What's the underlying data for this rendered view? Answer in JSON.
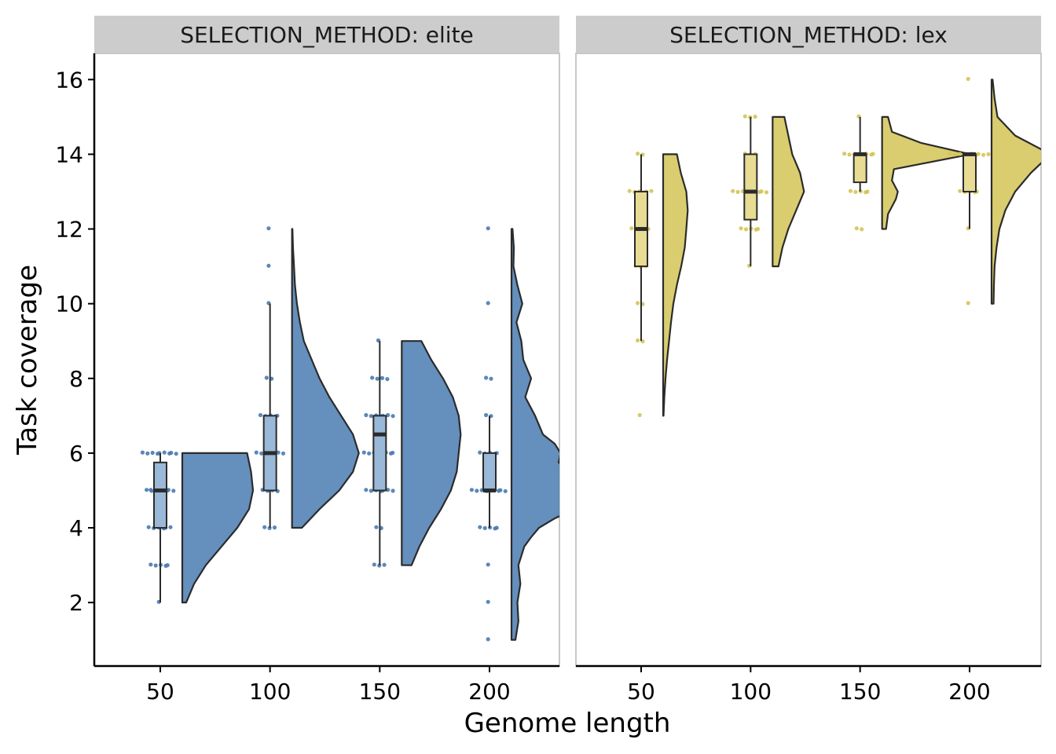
{
  "chart_data": {
    "type": "raincloud",
    "xlabel": "Genome length",
    "ylabel": "Task coverage",
    "ylim": [
      0.3,
      16.7
    ],
    "yticks": [
      2,
      4,
      6,
      8,
      10,
      12,
      14,
      16
    ],
    "categories": [
      "50",
      "100",
      "150",
      "200"
    ],
    "xvalues": [
      50,
      100,
      150,
      200
    ],
    "panels": [
      {
        "name": "elite",
        "strip_label": "SELECTION_METHOD: elite",
        "color": "#4a7bb0",
        "box_fill": "#9ab8d8",
        "groups": [
          {
            "x": 50,
            "min": 2,
            "q1": 4,
            "median": 5,
            "q3": 5.75,
            "max": 6,
            "points": [
              [
                6,
                9
              ],
              [
                5,
                7
              ],
              [
                5,
                5
              ],
              [
                4,
                6
              ],
              [
                3,
                5
              ],
              [
                2,
                1
              ]
            ],
            "density_range": [
              2,
              6
            ],
            "density": [
              [
                2,
                0.02
              ],
              [
                2.5,
                0.06
              ],
              [
                3,
                0.12
              ],
              [
                3.5,
                0.2
              ],
              [
                4,
                0.28
              ],
              [
                4.5,
                0.34
              ],
              [
                5,
                0.36
              ],
              [
                5.5,
                0.35
              ],
              [
                6,
                0.33
              ]
            ]
          },
          {
            "x": 100,
            "min": 4,
            "q1": 5,
            "median": 6,
            "q3": 7,
            "max": 10,
            "points": [
              [
                12,
                1
              ],
              [
                11,
                1
              ],
              [
                10,
                1
              ],
              [
                8,
                2
              ],
              [
                7,
                5
              ],
              [
                6,
                7
              ],
              [
                5,
                4
              ],
              [
                4,
                3
              ]
            ],
            "density_range": [
              4,
              12
            ],
            "density": [
              [
                4,
                0.05
              ],
              [
                4.5,
                0.14
              ],
              [
                5,
                0.24
              ],
              [
                5.5,
                0.31
              ],
              [
                6,
                0.34
              ],
              [
                6.5,
                0.31
              ],
              [
                7,
                0.25
              ],
              [
                7.5,
                0.19
              ],
              [
                8,
                0.14
              ],
              [
                8.5,
                0.1
              ],
              [
                9,
                0.06
              ],
              [
                9.5,
                0.04
              ],
              [
                10,
                0.025
              ],
              [
                10.5,
                0.015
              ],
              [
                11,
                0.01
              ],
              [
                11.5,
                0.005
              ],
              [
                12,
                0.002
              ]
            ]
          },
          {
            "x": 150,
            "min": 3,
            "q1": 5,
            "median": 6.5,
            "q3": 7,
            "max": 9,
            "points": [
              [
                9,
                1
              ],
              [
                8,
                4
              ],
              [
                7,
                7
              ],
              [
                6,
                8
              ],
              [
                5,
                7
              ],
              [
                4,
                2
              ],
              [
                3,
                3
              ]
            ],
            "density_range": [
              3,
              9
            ],
            "density": [
              [
                3,
                0.05
              ],
              [
                3.5,
                0.09
              ],
              [
                4,
                0.14
              ],
              [
                4.5,
                0.2
              ],
              [
                5,
                0.25
              ],
              [
                5.5,
                0.28
              ],
              [
                6,
                0.29
              ],
              [
                6.5,
                0.3
              ],
              [
                7,
                0.29
              ],
              [
                7.5,
                0.26
              ],
              [
                8,
                0.21
              ],
              [
                8.5,
                0.15
              ],
              [
                9,
                0.1
              ]
            ]
          },
          {
            "x": 200,
            "min": 4,
            "q1": 5,
            "median": 5,
            "q3": 6,
            "max": 7,
            "points": [
              [
                12,
                1
              ],
              [
                10,
                1
              ],
              [
                8,
                2
              ],
              [
                7,
                2
              ],
              [
                6,
                5
              ],
              [
                5,
                9
              ],
              [
                4,
                5
              ],
              [
                3,
                1
              ],
              [
                2,
                1
              ],
              [
                1,
                1
              ]
            ],
            "density_range": [
              1,
              12
            ],
            "density": [
              [
                1,
                0.02
              ],
              [
                1.5,
                0.035
              ],
              [
                2,
                0.03
              ],
              [
                2.5,
                0.045
              ],
              [
                3,
                0.035
              ],
              [
                3.5,
                0.065
              ],
              [
                3.75,
                0.1
              ],
              [
                4,
                0.14
              ],
              [
                4.25,
                0.22
              ],
              [
                4.5,
                0.32
              ],
              [
                4.75,
                0.42
              ],
              [
                5,
                0.47
              ],
              [
                5.25,
                0.4
              ],
              [
                5.5,
                0.3
              ],
              [
                5.75,
                0.24
              ],
              [
                6,
                0.25
              ],
              [
                6.25,
                0.22
              ],
              [
                6.5,
                0.16
              ],
              [
                7,
                0.12
              ],
              [
                7.5,
                0.07
              ],
              [
                8,
                0.1
              ],
              [
                8.5,
                0.06
              ],
              [
                9,
                0.05
              ],
              [
                9.5,
                0.025
              ],
              [
                10,
                0.055
              ],
              [
                10.5,
                0.03
              ],
              [
                11,
                0.01
              ],
              [
                11.5,
                0.012
              ],
              [
                12,
                0.005
              ]
            ]
          }
        ]
      },
      {
        "name": "lex",
        "strip_label": "SELECTION_METHOD: lex",
        "color": "#d4c456",
        "box_fill": "#e8dc94",
        "groups": [
          {
            "x": 50,
            "min": 9,
            "q1": 11,
            "median": 12,
            "q3": 13,
            "max": 14,
            "points": [
              [
                14,
                2
              ],
              [
                13,
                6
              ],
              [
                12,
                5
              ],
              [
                11,
                3
              ],
              [
                10,
                2
              ],
              [
                9,
                2
              ],
              [
                7,
                1
              ]
            ],
            "density_range": [
              7,
              14
            ],
            "density": [
              [
                7,
                0.002
              ],
              [
                7.5,
                0.006
              ],
              [
                8,
                0.012
              ],
              [
                8.5,
                0.02
              ],
              [
                9,
                0.03
              ],
              [
                9.5,
                0.04
              ],
              [
                10,
                0.052
              ],
              [
                10.5,
                0.07
              ],
              [
                11,
                0.092
              ],
              [
                11.5,
                0.11
              ],
              [
                12,
                0.118
              ],
              [
                12.5,
                0.125
              ],
              [
                13,
                0.118
              ],
              [
                13.5,
                0.09
              ],
              [
                14,
                0.07
              ]
            ]
          },
          {
            "x": 100,
            "min": 11,
            "q1": 12.25,
            "median": 13,
            "q3": 14,
            "max": 15,
            "points": [
              [
                15,
                3
              ],
              [
                14,
                3
              ],
              [
                13,
                9
              ],
              [
                12,
                5
              ],
              [
                11,
                1
              ]
            ],
            "density_range": [
              11,
              15
            ],
            "density": [
              [
                11,
                0.03
              ],
              [
                11.5,
                0.05
              ],
              [
                12,
                0.08
              ],
              [
                12.5,
                0.12
              ],
              [
                13,
                0.16
              ],
              [
                13.5,
                0.14
              ],
              [
                14,
                0.1
              ],
              [
                14.5,
                0.08
              ],
              [
                15,
                0.06
              ]
            ]
          },
          {
            "x": 150,
            "min": 13,
            "q1": 13.25,
            "median": 14,
            "q3": 14,
            "max": 15,
            "points": [
              [
                15,
                1
              ],
              [
                14,
                8
              ],
              [
                13,
                5
              ],
              [
                12,
                2
              ]
            ],
            "density_range": [
              12,
              15
            ],
            "density": [
              [
                12,
                0.02
              ],
              [
                12.4,
                0.03
              ],
              [
                12.8,
                0.07
              ],
              [
                13,
                0.08
              ],
              [
                13.3,
                0.05
              ],
              [
                13.6,
                0.06
              ],
              [
                14,
                0.45
              ],
              [
                14.3,
                0.2
              ],
              [
                14.6,
                0.05
              ],
              [
                15,
                0.03
              ]
            ]
          },
          {
            "x": 200,
            "min": 12,
            "q1": 13,
            "median": 14,
            "q3": 14,
            "max": 14,
            "points": [
              [
                16,
                1
              ],
              [
                14,
                10
              ],
              [
                13,
                5
              ],
              [
                12,
                1
              ],
              [
                10,
                1
              ]
            ],
            "density_range": [
              10,
              16
            ],
            "density": [
              [
                10,
                0.01
              ],
              [
                10.5,
                0.012
              ],
              [
                11,
                0.015
              ],
              [
                11.5,
                0.025
              ],
              [
                12,
                0.04
              ],
              [
                12.5,
                0.07
              ],
              [
                13,
                0.12
              ],
              [
                13.5,
                0.2
              ],
              [
                14,
                0.3
              ],
              [
                14.5,
                0.12
              ],
              [
                15,
                0.03
              ],
              [
                15.5,
                0.015
              ],
              [
                16,
                0.005
              ]
            ]
          }
        ]
      }
    ]
  }
}
